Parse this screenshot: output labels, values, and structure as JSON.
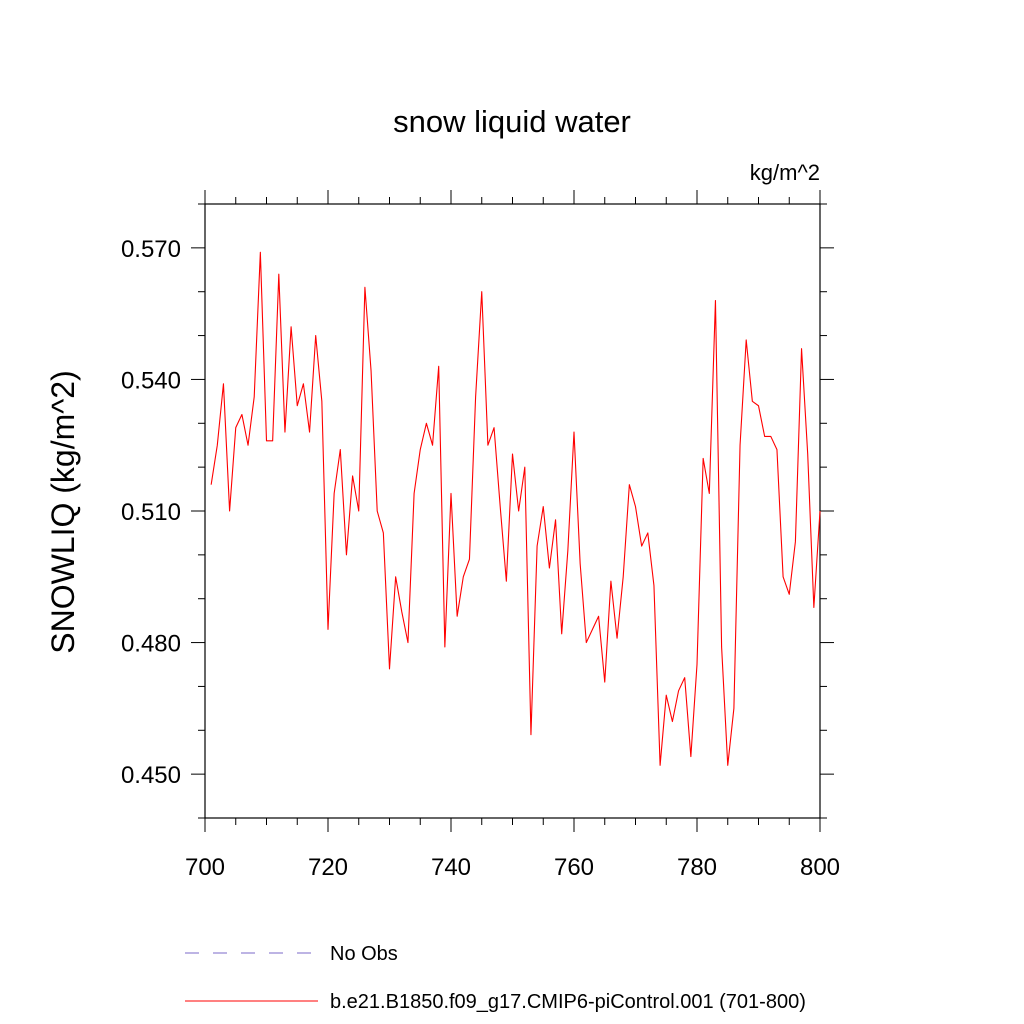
{
  "chart_data": {
    "type": "line",
    "title": "snow liquid water",
    "units": "kg/m^2",
    "xlabel": "",
    "ylabel": "SNOWLIQ  (kg/m^2)",
    "xlim": [
      700,
      800
    ],
    "ylim": [
      0.44,
      0.58
    ],
    "x_ticks": [
      "700",
      "720",
      "740",
      "760",
      "780",
      "800"
    ],
    "y_ticks": [
      "0.450",
      "0.480",
      "0.510",
      "0.540",
      "0.570"
    ],
    "grid": false,
    "legend_position": "bottom",
    "series": [
      {
        "name": "b.e21.B1850.f09_g17.CMIP6-piControl.001 (701-800)",
        "color": "#ff0000",
        "style": "solid",
        "x": [
          701,
          702,
          703,
          704,
          705,
          706,
          707,
          708,
          709,
          710,
          711,
          712,
          713,
          714,
          715,
          716,
          717,
          718,
          719,
          720,
          721,
          722,
          723,
          724,
          725,
          726,
          727,
          728,
          729,
          730,
          731,
          732,
          733,
          734,
          735,
          736,
          737,
          738,
          739,
          740,
          741,
          742,
          743,
          744,
          745,
          746,
          747,
          748,
          749,
          750,
          751,
          752,
          753,
          754,
          755,
          756,
          757,
          758,
          759,
          760,
          761,
          762,
          763,
          764,
          765,
          766,
          767,
          768,
          769,
          770,
          771,
          772,
          773,
          774,
          775,
          776,
          777,
          778,
          779,
          780,
          781,
          782,
          783,
          784,
          785,
          786,
          787,
          788,
          789,
          790,
          791,
          792,
          793,
          794,
          795,
          796,
          797,
          798,
          799,
          800
        ],
        "values": [
          0.516,
          0.525,
          0.539,
          0.51,
          0.529,
          0.532,
          0.525,
          0.536,
          0.569,
          0.526,
          0.526,
          0.564,
          0.528,
          0.552,
          0.534,
          0.539,
          0.528,
          0.55,
          0.535,
          0.483,
          0.514,
          0.524,
          0.5,
          0.518,
          0.51,
          0.561,
          0.542,
          0.51,
          0.505,
          0.474,
          0.495,
          0.487,
          0.48,
          0.514,
          0.524,
          0.53,
          0.525,
          0.543,
          0.479,
          0.514,
          0.486,
          0.495,
          0.499,
          0.536,
          0.56,
          0.525,
          0.529,
          0.511,
          0.494,
          0.523,
          0.51,
          0.52,
          0.459,
          0.502,
          0.511,
          0.497,
          0.508,
          0.482,
          0.501,
          0.528,
          0.498,
          0.48,
          0.483,
          0.486,
          0.471,
          0.494,
          0.481,
          0.495,
          0.516,
          0.511,
          0.502,
          0.505,
          0.493,
          0.452,
          0.468,
          0.462,
          0.469,
          0.472,
          0.454,
          0.475,
          0.522,
          0.514,
          0.558,
          0.479,
          0.452,
          0.465,
          0.525,
          0.549,
          0.535,
          0.534,
          0.527,
          0.527,
          0.524,
          0.495,
          0.491,
          0.503,
          0.547,
          0.523,
          0.488,
          0.51
        ]
      }
    ],
    "legend": [
      {
        "label": "No Obs",
        "color": "#7b68c8",
        "style": "dashed"
      },
      {
        "label": "b.e21.B1850.f09_g17.CMIP6-piControl.001 (701-800)",
        "color": "#ff0000",
        "style": "solid"
      }
    ]
  }
}
